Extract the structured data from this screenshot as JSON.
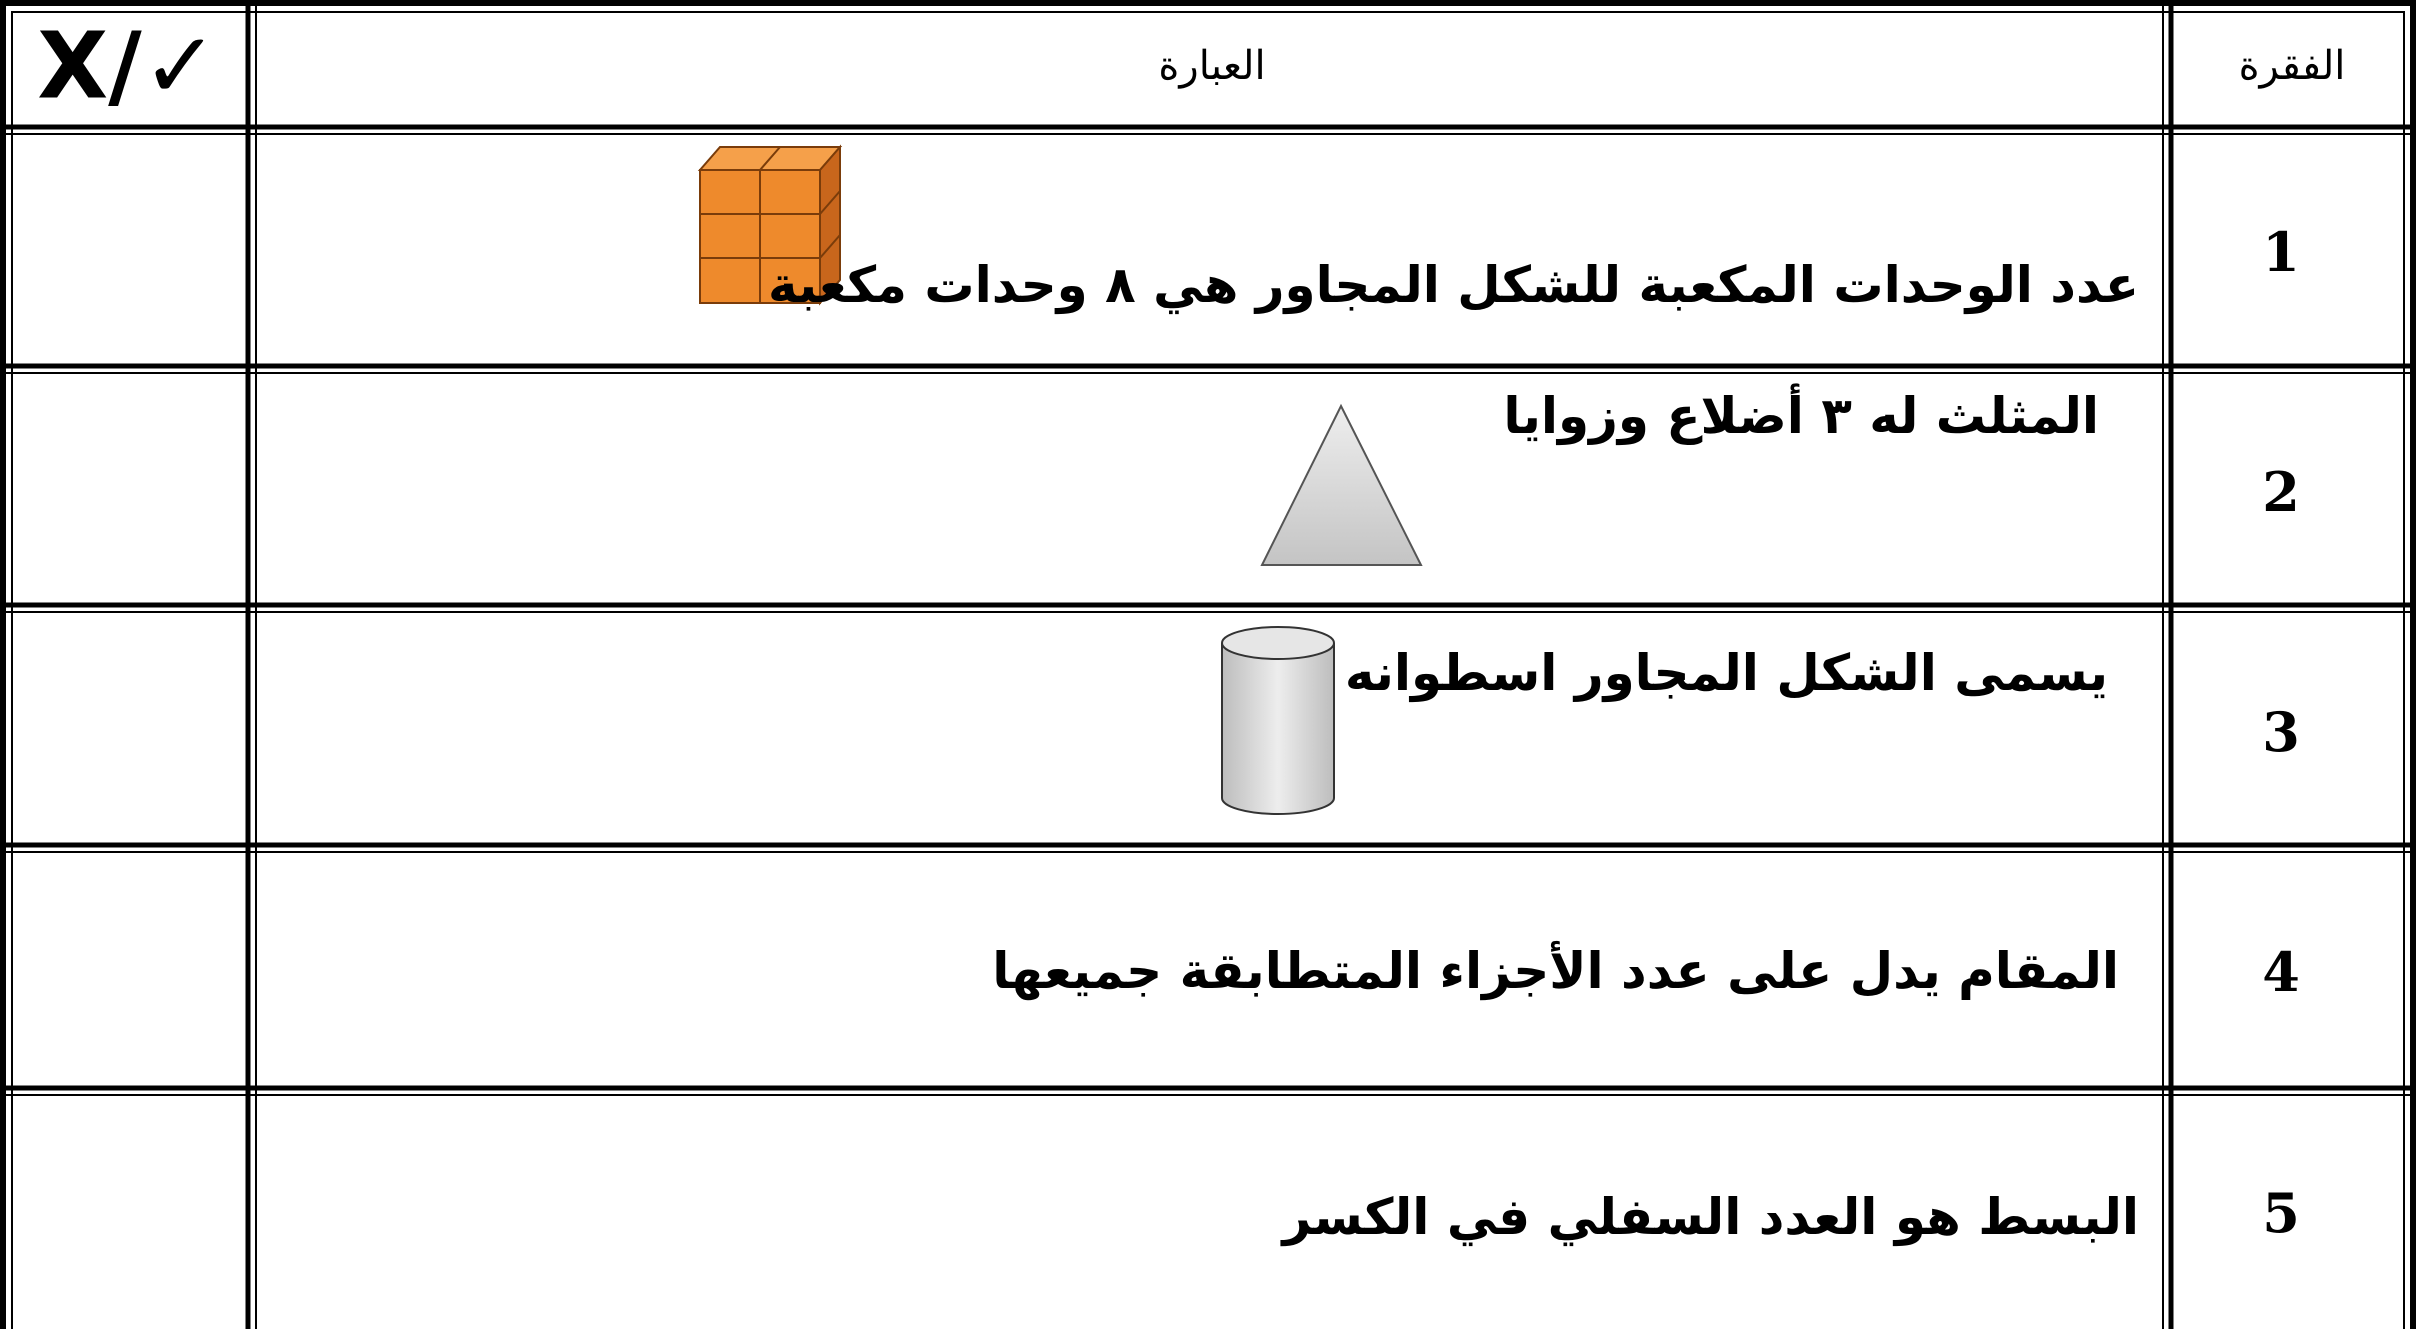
{
  "table": {
    "header": [
      "X/✓",
      "العبارة",
      "الفقرة"
    ],
    "rows": [
      {
        "number": "1",
        "statement": "عدد الوحدات المكعبة للشكل المجاور هي ٨ وحدات مكعبة"
      },
      {
        "number": "2",
        "statement": "المثلث له ٣ أضلاع وزوايا"
      },
      {
        "number": "3",
        "statement": "يسمى الشكل المجاور اسطوانه"
      },
      {
        "number": "4",
        "statement": "المقام يدل على عدد الأجزاء المتطابقة جميعها"
      },
      {
        "number": "5",
        "statement": "البسط هو العدد السفلي في الكسر"
      }
    ]
  }
}
